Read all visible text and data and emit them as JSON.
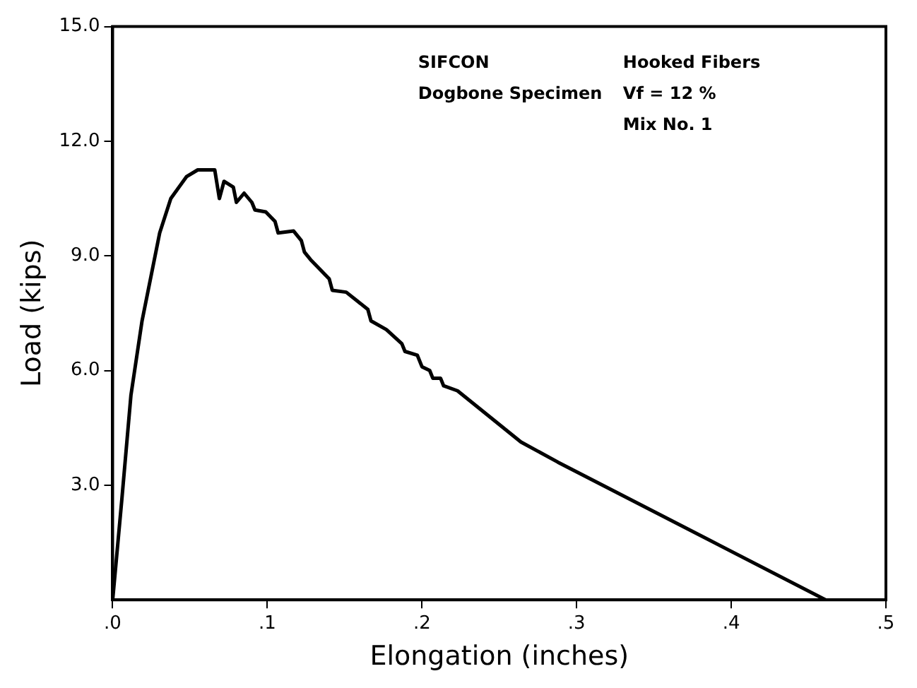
{
  "chart_data": {
    "type": "line",
    "xlabel": "Elongation (inches)",
    "ylabel": "Load (kips)",
    "annotations": [
      "SIFCON",
      "Dogbone Specimen",
      "Hooked Fibers",
      "Vf = 12 %",
      "Mix No. 1"
    ],
    "x": [
      0,
      0.006,
      0.0118,
      0.019,
      0.0304,
      0.0376,
      0.0477,
      0.055,
      0.066,
      0.069,
      0.072,
      0.078,
      0.08,
      0.085,
      0.09,
      0.092,
      0.099,
      0.105,
      0.107,
      0.117,
      0.122,
      0.124,
      0.128,
      0.14,
      0.142,
      0.151,
      0.165,
      0.167,
      0.177,
      0.187,
      0.189,
      0.197,
      0.2,
      0.205,
      0.207,
      0.212,
      0.214,
      0.223,
      0.264,
      0.288,
      0.461
    ],
    "series": [
      {
        "color": "#000000",
        "values": [
          0,
          2.66,
          5.35,
          7.3,
          9.6,
          10.5,
          11.07,
          11.25,
          11.25,
          10.5,
          10.95,
          10.8,
          10.4,
          10.64,
          10.4,
          10.2,
          10.15,
          9.9,
          9.6,
          9.65,
          9.4,
          9.1,
          8.9,
          8.4,
          8.1,
          8.05,
          7.6,
          7.3,
          7.07,
          6.7,
          6.5,
          6.4,
          6.1,
          6.0,
          5.8,
          5.8,
          5.6,
          5.47,
          4.13,
          3.6,
          0
        ]
      }
    ],
    "xlim": [
      0,
      0.5
    ],
    "xticks": [
      {
        "value": 0,
        "label": ".0"
      },
      {
        "value": 0.1,
        "label": ".1"
      },
      {
        "value": 0.2,
        "label": ".2"
      },
      {
        "value": 0.3,
        "label": ".3"
      },
      {
        "value": 0.4,
        "label": ".4"
      },
      {
        "value": 0.5,
        "label": ".5"
      }
    ],
    "ylim": [
      0,
      15
    ],
    "yticks": [
      {
        "value": 3,
        "label": "3.0"
      },
      {
        "value": 6,
        "label": "6.0"
      },
      {
        "value": 9,
        "label": "9.0"
      },
      {
        "value": 12,
        "label": "12.0"
      },
      {
        "value": 15,
        "label": "15.0"
      }
    ],
    "grid": false,
    "legend": false,
    "marker": "none",
    "line_style": "solid"
  }
}
